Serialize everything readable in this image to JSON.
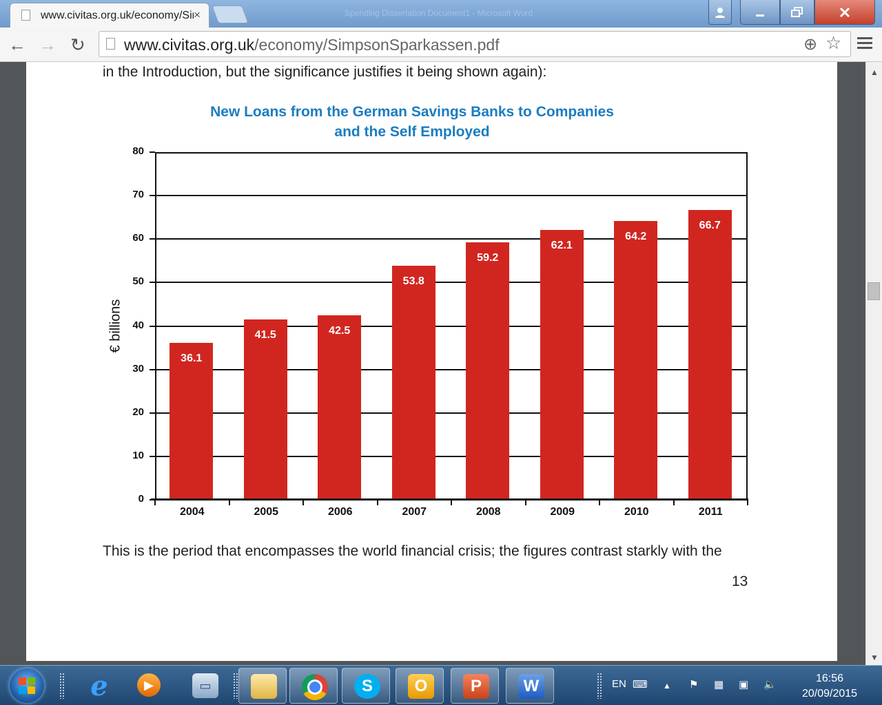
{
  "browser": {
    "tab_title": "www.civitas.org.uk/economy/SimpsonSparkassen.pdf",
    "tab_close": "×",
    "url_host": "www.civitas.org.uk",
    "url_path": "/economy/SimpsonSparkassen.pdf",
    "background_window_title": "Spending Dissertation Document1 - Microsoft Word",
    "nav": {
      "back": "←",
      "forward": "→",
      "reload": "↻"
    },
    "icons": {
      "zoom": "⊕",
      "bookmark": "☆"
    }
  },
  "pdf": {
    "intro_text": "in the Introduction, but the significance justifies it being shown again):",
    "after_text": "This is the period that encompasses the world financial crisis; the figures contrast starkly with the",
    "page_number": "13"
  },
  "chart_data": {
    "type": "bar",
    "title_line1": "New Loans from the  German Savings Banks to Companies",
    "title_line2": "and the Self Employed",
    "categories": [
      "2004",
      "2005",
      "2006",
      "2007",
      "2008",
      "2009",
      "2010",
      "2011"
    ],
    "values": [
      36.1,
      41.5,
      42.5,
      53.8,
      59.2,
      62.1,
      64.2,
      66.7
    ],
    "value_labels": [
      "36.1",
      "41.5",
      "42.5",
      "53.8",
      "59.2",
      "62.1",
      "64.2",
      "66.7"
    ],
    "xlabel": "",
    "ylabel": "€ billions",
    "ylim": [
      0,
      80
    ],
    "yticks": [
      "0",
      "10",
      "20",
      "30",
      "40",
      "50",
      "60",
      "70",
      "80"
    ],
    "bar_color": "#d12620",
    "title_color": "#1b7cc1",
    "grid": true
  },
  "taskbar": {
    "apps": [
      "Internet Explorer",
      "Windows Media Player",
      "Network",
      "Windows Explorer",
      "Google Chrome",
      "Skype",
      "Outlook",
      "PowerPoint",
      "Word"
    ],
    "language": "EN",
    "time": "16:56",
    "date": "20/09/2015"
  },
  "colors": {
    "taskbar": "#2a5785",
    "chrome_frame": "#7fa6d4"
  }
}
